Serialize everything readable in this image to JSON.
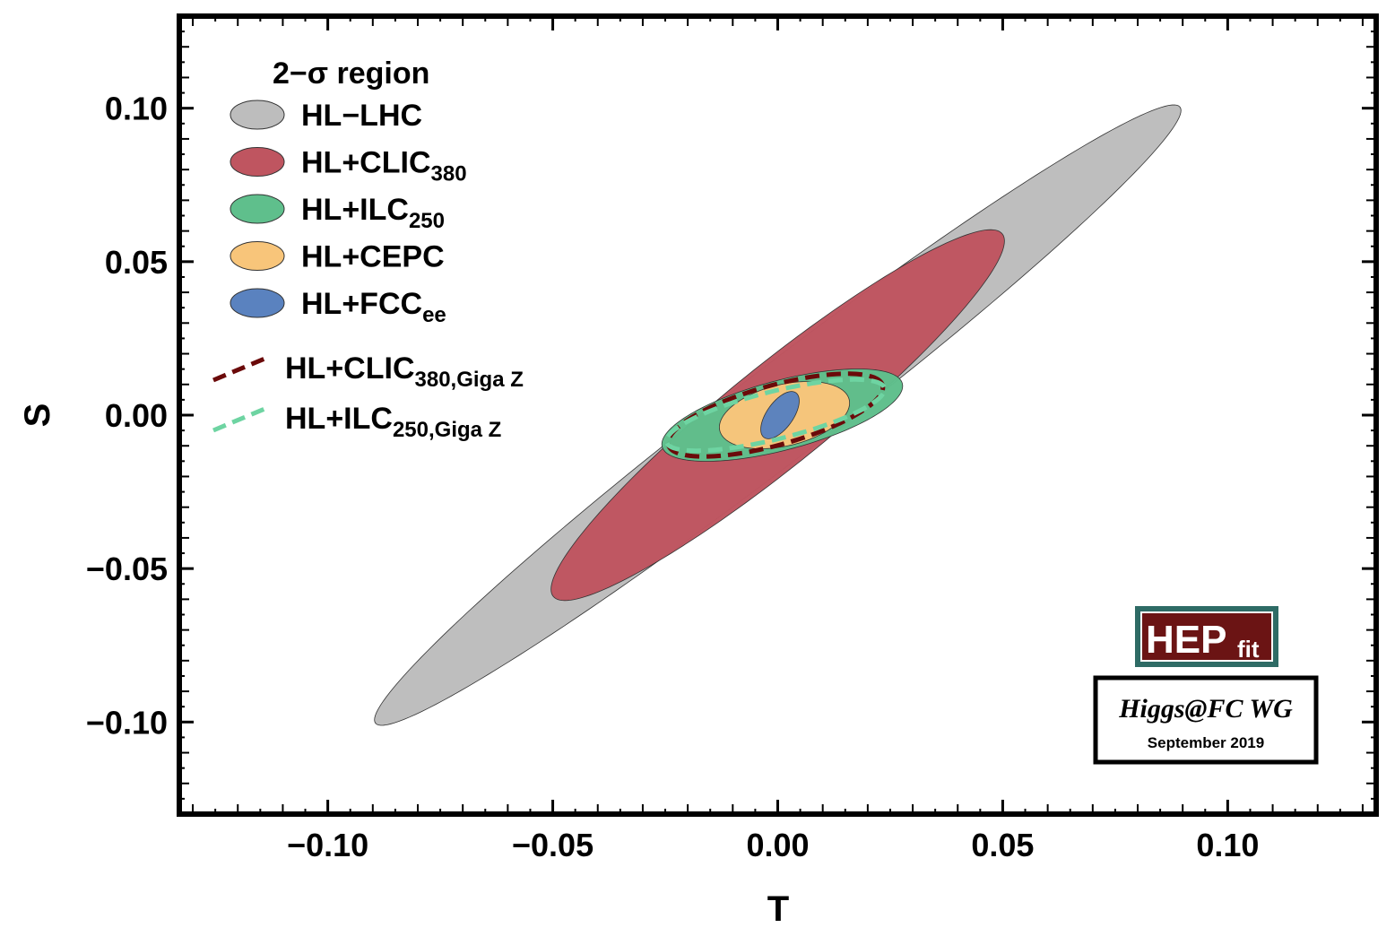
{
  "chart_data": {
    "type": "contour",
    "xlabel": "T",
    "ylabel": "S",
    "xlim": [
      -0.133,
      0.133
    ],
    "ylim": [
      -0.13,
      0.13
    ],
    "xticks": [
      {
        "value": -0.1,
        "label": "−0.10"
      },
      {
        "value": -0.05,
        "label": "−0.05"
      },
      {
        "value": 0.0,
        "label": "0.00"
      },
      {
        "value": 0.05,
        "label": "0.05"
      },
      {
        "value": 0.1,
        "label": "0.10"
      }
    ],
    "yticks": [
      {
        "value": 0.1,
        "label": "0.10"
      },
      {
        "value": 0.05,
        "label": "0.05"
      },
      {
        "value": 0.0,
        "label": "0.00"
      },
      {
        "value": -0.05,
        "label": "−0.05"
      },
      {
        "value": -0.1,
        "label": "−0.10"
      }
    ],
    "legend": {
      "title": "2−σ region",
      "position": "top-left"
    },
    "series": [
      {
        "name": "HL−LHC",
        "label": "HL−LHC",
        "sub": "",
        "style": "filled",
        "color": "#bdbdbd",
        "center": [
          0.0,
          0.0
        ],
        "semi_major": 0.1345,
        "semi_minor": 0.01265,
        "angle_deg": 48.5
      },
      {
        "name": "HL+CLIC380",
        "label": "HL+CLIC",
        "sub": "380",
        "style": "filled",
        "color": "#bf5560",
        "center": [
          0.0,
          0.0
        ],
        "semi_major": 0.0775,
        "semi_minor": 0.0135,
        "angle_deg": 50.5
      },
      {
        "name": "HL+ILC250",
        "label": "HL+ILC",
        "sub": "250",
        "style": "filled",
        "color": "#5fbf8c",
        "center": [
          0.001,
          0.0
        ],
        "semi_major": 0.0287,
        "semi_minor": 0.0109,
        "angle_deg": 23
      },
      {
        "name": "HL+CEPC",
        "label": "HL+CEPC",
        "sub": "",
        "style": "filled",
        "color": "#f8c57a",
        "center": [
          0.0015,
          0.0
        ],
        "semi_major": 0.0154,
        "semi_minor": 0.0096,
        "angle_deg": 26
      },
      {
        "name": "HL+FCCee",
        "label": "HL+FCC",
        "sub": "ee",
        "style": "filled",
        "color": "#5a82bf",
        "center": [
          0.0005,
          0.0
        ],
        "semi_major": 0.0082,
        "semi_minor": 0.0032,
        "angle_deg": 68
      },
      {
        "name": "HL+CLIC380,Giga Z",
        "label": "HL+CLIC",
        "sub": "380,Giga Z",
        "style": "dashed",
        "color": "#6b0a0a",
        "center": [
          -0.0005,
          0.0
        ],
        "semi_major": 0.0258,
        "semi_minor": 0.0093,
        "angle_deg": 24
      },
      {
        "name": "HL+ILC250,Giga Z",
        "label": "HL+ILC",
        "sub": "250,Giga Z",
        "style": "dashed",
        "color": "#6ed4a2",
        "center": [
          -0.0005,
          0.0
        ],
        "semi_major": 0.0258,
        "semi_minor": 0.0075,
        "angle_deg": 21
      }
    ]
  },
  "badges": {
    "logo_main": "HEP",
    "logo_sub": "fit",
    "working_group": "Higgs@FC WG",
    "date": "September 2019"
  },
  "colors": {
    "logo_bg": "#6b1414",
    "logo_border": "#2e6b65",
    "axis": "#000000"
  }
}
